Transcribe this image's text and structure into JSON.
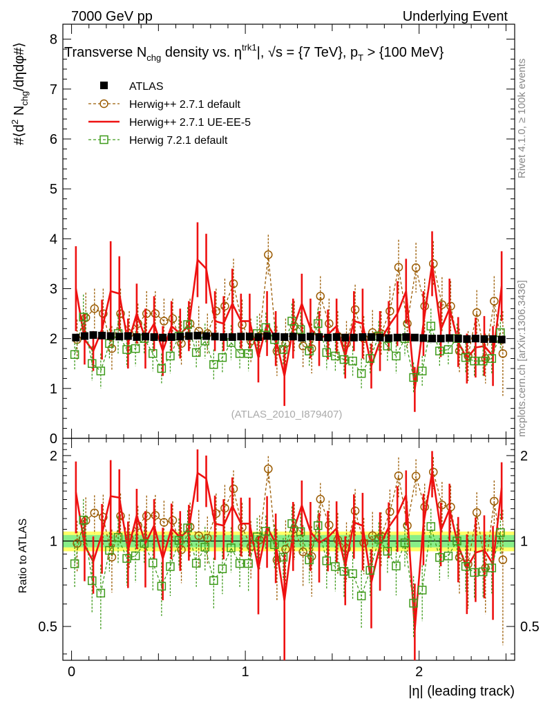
{
  "header": {
    "left": "7000 GeV pp",
    "right": "Underlying Event"
  },
  "side": {
    "rivet": "Rivet 4.1.0, ≥ 100k events",
    "mcplots": "mcplots.cern.ch [arXiv:1306.3436]"
  },
  "colors": {
    "atlas": "#000000",
    "herwig_default": "#9a5a00",
    "herwig_ue": "#ee1111",
    "herwig72": "#3d9a1a",
    "band_inner": "#88ee88",
    "band_outer": "#ffff66"
  },
  "chart_data": [
    {
      "type": "line",
      "title_parts": {
        "t1": "Transverse N",
        "t1sub": "chg",
        "t2": " density vs. η",
        "t2sup": "trk1",
        "t3": "|, √s = {7 TeV}, p",
        "t3sub": "T",
        "t4": " > {100 MeV}"
      },
      "ylabel": "#⟨d² N_chg/dηdφ#⟩",
      "ylabel_parts": {
        "a": "#⟨d",
        "b": "2",
        "c": " N",
        "d": "chg",
        "e": "/dηdφ#⟩"
      },
      "annotation": "(ATLAS_2010_I879407)",
      "xlim": [
        -0.05,
        2.55
      ],
      "ylim": [
        0,
        8.3
      ],
      "yticks": [
        0,
        1,
        2,
        3,
        4,
        5,
        6,
        7,
        8
      ],
      "x": [
        0.025,
        0.075,
        0.125,
        0.175,
        0.225,
        0.275,
        0.325,
        0.375,
        0.425,
        0.475,
        0.525,
        0.575,
        0.625,
        0.675,
        0.725,
        0.775,
        0.825,
        0.875,
        0.925,
        0.975,
        1.025,
        1.075,
        1.125,
        1.175,
        1.225,
        1.275,
        1.325,
        1.375,
        1.425,
        1.475,
        1.525,
        1.575,
        1.625,
        1.675,
        1.725,
        1.775,
        1.825,
        1.875,
        1.925,
        1.975,
        2.025,
        2.075,
        2.125,
        2.175,
        2.225,
        2.275,
        2.325,
        2.375,
        2.425,
        2.475
      ],
      "series": [
        {
          "name": "ATLAS",
          "style": "marker-square",
          "values": [
            2.02,
            2.05,
            2.07,
            2.06,
            2.05,
            2.04,
            2.05,
            2.03,
            2.04,
            2.03,
            2.02,
            2.03,
            2.04,
            2.05,
            2.06,
            2.05,
            2.04,
            2.03,
            2.03,
            2.04,
            2.04,
            2.03,
            2.05,
            2.04,
            2.03,
            2.04,
            2.02,
            2.04,
            2.03,
            2.02,
            2.03,
            2.02,
            2.02,
            2.03,
            2.03,
            2.02,
            2.01,
            2.02,
            2.03,
            2.02,
            2.01,
            2.0,
            2.0,
            2.01,
            2.0,
            1.99,
            2.0,
            1.99,
            1.99,
            1.98
          ],
          "errors": [
            0.04,
            0.04,
            0.04,
            0.04,
            0.04,
            0.04,
            0.04,
            0.04,
            0.04,
            0.04,
            0.04,
            0.04,
            0.04,
            0.04,
            0.04,
            0.04,
            0.04,
            0.04,
            0.04,
            0.04,
            0.04,
            0.04,
            0.04,
            0.04,
            0.04,
            0.04,
            0.04,
            0.04,
            0.04,
            0.04,
            0.04,
            0.04,
            0.04,
            0.04,
            0.04,
            0.04,
            0.04,
            0.04,
            0.04,
            0.04,
            0.04,
            0.04,
            0.04,
            0.04,
            0.04,
            0.04,
            0.04,
            0.04,
            0.04,
            0.04
          ]
        },
        {
          "name": "Herwig++ 2.7.1 default",
          "style": "dashed-circle",
          "values": [
            1.98,
            2.42,
            2.6,
            2.5,
            1.8,
            2.5,
            2.1,
            2.3,
            2.5,
            2.5,
            2.35,
            2.4,
            1.9,
            2.3,
            2.15,
            2.1,
            2.55,
            2.65,
            3.1,
            2.28,
            1.95,
            2.05,
            3.68,
            1.75,
            1.9,
            2.25,
            1.85,
            1.8,
            2.85,
            2.3,
            2.05,
            1.9,
            2.58,
            2.0,
            2.12,
            2.1,
            2.55,
            3.43,
            2.3,
            3.42,
            2.65,
            3.5,
            2.68,
            2.65,
            1.75,
            1.65,
            2.52,
            1.6,
            2.75,
            1.7
          ],
          "errors": [
            0.4,
            0.5,
            0.4,
            0.5,
            0.45,
            0.5,
            0.45,
            0.4,
            0.45,
            0.45,
            0.45,
            0.4,
            0.45,
            0.5,
            0.5,
            0.4,
            0.45,
            0.55,
            0.5,
            0.5,
            0.45,
            0.45,
            0.4,
            0.5,
            0.5,
            0.5,
            0.45,
            0.5,
            0.4,
            0.5,
            0.5,
            0.45,
            0.5,
            0.45,
            0.45,
            0.45,
            0.5,
            0.55,
            0.5,
            0.5,
            0.55,
            0.45,
            0.55,
            0.5,
            0.45,
            0.5,
            0.45,
            0.5,
            0.5,
            0.85
          ]
        },
        {
          "name": "Herwig++ 2.7.1 UE-EE-5",
          "style": "solid-line",
          "values": [
            3.0,
            1.98,
            1.75,
            2.18,
            2.95,
            2.9,
            1.9,
            2.5,
            2.0,
            2.3,
            1.75,
            2.25,
            2.1,
            2.25,
            3.58,
            3.4,
            2.35,
            2.3,
            2.7,
            2.35,
            2.35,
            1.62,
            2.3,
            2.0,
            1.25,
            2.2,
            2.7,
            2.2,
            2.0,
            2.08,
            2.25,
            1.65,
            2.35,
            2.3,
            1.45,
            1.95,
            2.25,
            2.5,
            2.95,
            0.98,
            2.3,
            3.5,
            2.18,
            2.6,
            1.93,
            1.6,
            1.82,
            1.85,
            1.65,
            3.05
          ],
          "errors": [
            0.85,
            0.5,
            0.4,
            0.6,
            1.0,
            0.75,
            0.5,
            0.6,
            0.6,
            0.55,
            0.5,
            0.5,
            0.5,
            0.5,
            0.75,
            0.7,
            0.6,
            0.55,
            0.7,
            0.55,
            0.55,
            0.5,
            0.65,
            0.55,
            0.6,
            0.6,
            0.6,
            0.6,
            0.55,
            0.5,
            0.55,
            0.45,
            0.6,
            0.7,
            0.45,
            0.6,
            0.5,
            0.65,
            0.65,
            0.45,
            0.65,
            0.65,
            0.55,
            0.6,
            0.5,
            0.5,
            0.6,
            0.6,
            0.6,
            0.7
          ]
        },
        {
          "name": "Herwig 7.2.1 default",
          "style": "dashed-square",
          "values": [
            1.68,
            2.43,
            1.5,
            1.35,
            1.9,
            2.1,
            1.78,
            1.8,
            2.0,
            1.7,
            1.4,
            1.65,
            2.05,
            2.28,
            1.72,
            1.95,
            1.48,
            1.62,
            1.92,
            1.7,
            1.7,
            2.1,
            2.22,
            1.98,
            1.78,
            2.35,
            2.18,
            1.75,
            2.3,
            1.72,
            1.65,
            1.58,
            1.55,
            1.3,
            1.6,
            2.05,
            1.85,
            1.65,
            2.0,
            1.22,
            1.35,
            2.25,
            1.75,
            1.78,
            2.0,
            1.62,
            1.55,
            1.55,
            1.6,
            2.12
          ],
          "errors": [
            0.3,
            0.45,
            0.35,
            0.35,
            0.3,
            0.4,
            0.35,
            0.35,
            0.3,
            0.35,
            0.3,
            0.35,
            0.4,
            0.35,
            0.3,
            0.35,
            0.3,
            0.3,
            0.35,
            0.3,
            0.35,
            0.35,
            0.3,
            0.35,
            0.3,
            0.35,
            0.35,
            0.3,
            0.3,
            0.35,
            0.3,
            0.3,
            0.3,
            0.3,
            0.3,
            0.3,
            0.3,
            0.35,
            0.35,
            0.3,
            0.3,
            0.35,
            0.3,
            0.3,
            0.3,
            0.3,
            0.3,
            0.3,
            0.3,
            0.35
          ]
        }
      ]
    },
    {
      "type": "line",
      "title": "Ratio to ATLAS",
      "ylabel": "Ratio to ATLAS",
      "xlabel": "|η| (leading track)",
      "xlim": [
        -0.05,
        2.55
      ],
      "ylim": [
        0.38,
        2.3
      ],
      "yticks": [
        0.5,
        1,
        2
      ],
      "yticklabels": [
        "0.5",
        "1",
        "2"
      ],
      "xticks": [
        0,
        1,
        2
      ],
      "xticklabels": [
        "0",
        "1",
        "2"
      ],
      "band_inner": [
        0.95,
        1.05
      ],
      "band_outer": [
        0.92,
        1.08
      ]
    }
  ],
  "legend": [
    {
      "label": "ATLAS"
    },
    {
      "label": "Herwig++ 2.7.1 default"
    },
    {
      "label": "Herwig++ 2.7.1 UE-EE-5"
    },
    {
      "label": "Herwig 7.2.1 default"
    }
  ]
}
